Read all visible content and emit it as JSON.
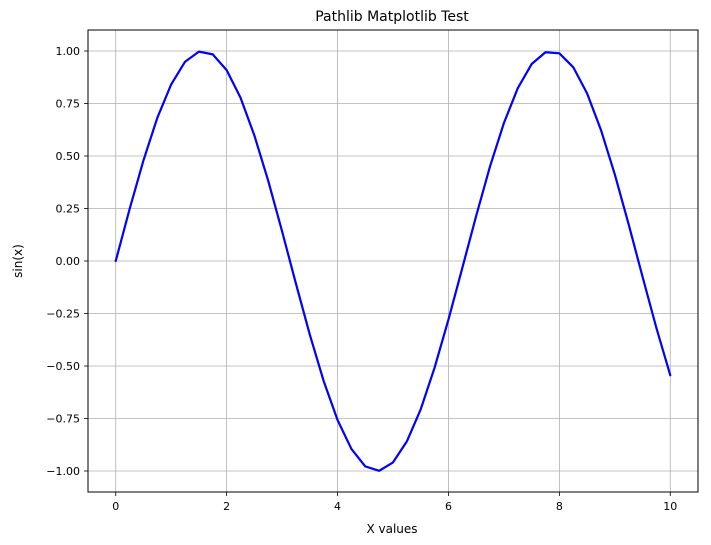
{
  "chart_data": {
    "type": "line",
    "title": "Pathlib Matplotlib Test",
    "xlabel": "X values",
    "ylabel": "sin(x)",
    "xlim": [
      -0.5,
      10.5
    ],
    "ylim": [
      -1.1,
      1.1
    ],
    "x_ticks": [
      0,
      2,
      4,
      6,
      8,
      10
    ],
    "x_tick_labels": [
      "0",
      "2",
      "4",
      "6",
      "8",
      "10"
    ],
    "y_ticks": [
      -1.0,
      -0.75,
      -0.5,
      -0.25,
      0.0,
      0.25,
      0.5,
      0.75,
      1.0
    ],
    "y_tick_labels": [
      "−1.00",
      "−0.75",
      "−0.50",
      "−0.25",
      "0.00",
      "0.25",
      "0.50",
      "0.75",
      "1.00"
    ],
    "grid": true,
    "series": [
      {
        "color": "#0000ff",
        "x": [
          0,
          0.25,
          0.5,
          0.75,
          1.0,
          1.25,
          1.5,
          1.75,
          2.0,
          2.25,
          2.5,
          2.75,
          3.0,
          3.25,
          3.5,
          3.75,
          4.0,
          4.25,
          4.5,
          4.75,
          5.0,
          5.25,
          5.5,
          5.75,
          6.0,
          6.25,
          6.5,
          6.75,
          7.0,
          7.25,
          7.5,
          7.75,
          8.0,
          8.25,
          8.5,
          8.75,
          9.0,
          9.25,
          9.5,
          9.75,
          10.0
        ],
        "y": [
          0.0,
          0.247,
          0.479,
          0.682,
          0.841,
          0.949,
          0.997,
          0.984,
          0.909,
          0.778,
          0.598,
          0.382,
          0.141,
          -0.108,
          -0.351,
          -0.572,
          -0.757,
          -0.895,
          -0.978,
          -0.999,
          -0.959,
          -0.859,
          -0.706,
          -0.508,
          -0.279,
          -0.033,
          0.215,
          0.451,
          0.657,
          0.823,
          0.938,
          0.994,
          0.989,
          0.923,
          0.798,
          0.624,
          0.412,
          0.174,
          -0.075,
          -0.319,
          -0.544
        ]
      }
    ]
  }
}
